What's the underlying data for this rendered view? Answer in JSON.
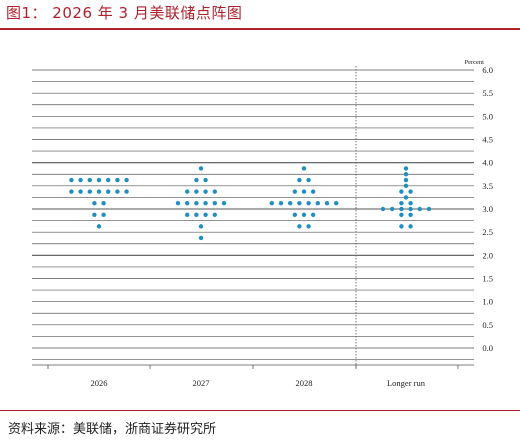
{
  "figure": {
    "title": "图1： 2026 年 3 月美联储点阵图",
    "source": "资料来源：美联储，浙商证券研究所"
  },
  "colors": {
    "dot": "#1f8fc2",
    "accent": "#b0202e",
    "grid": "#555555"
  },
  "chart_data": {
    "type": "scatter",
    "title": "",
    "xlabel": "",
    "ylabel": "Percent",
    "ylim": [
      -0.5,
      6.0
    ],
    "yticks": [
      "0.0",
      "0.5",
      "1.0",
      "1.5",
      "2.0",
      "2.5",
      "3.0",
      "3.5",
      "4.0",
      "4.5",
      "5.0",
      "5.5",
      "6.0"
    ],
    "categories": [
      "2026",
      "2027",
      "2028",
      "Longer run"
    ],
    "grid": true,
    "points": [
      {
        "category": "2026",
        "y": 3.625,
        "count": 7
      },
      {
        "category": "2026",
        "y": 3.375,
        "count": 7
      },
      {
        "category": "2026",
        "y": 3.125,
        "count": 2
      },
      {
        "category": "2026",
        "y": 2.875,
        "count": 2
      },
      {
        "category": "2026",
        "y": 2.625,
        "count": 1
      },
      {
        "category": "2027",
        "y": 3.875,
        "count": 1
      },
      {
        "category": "2027",
        "y": 3.625,
        "count": 2
      },
      {
        "category": "2027",
        "y": 3.375,
        "count": 4
      },
      {
        "category": "2027",
        "y": 3.125,
        "count": 6
      },
      {
        "category": "2027",
        "y": 2.875,
        "count": 4
      },
      {
        "category": "2027",
        "y": 2.625,
        "count": 1
      },
      {
        "category": "2027",
        "y": 2.375,
        "count": 1
      },
      {
        "category": "2028",
        "y": 3.875,
        "count": 1
      },
      {
        "category": "2028",
        "y": 3.625,
        "count": 2
      },
      {
        "category": "2028",
        "y": 3.375,
        "count": 3
      },
      {
        "category": "2028",
        "y": 3.125,
        "count": 8
      },
      {
        "category": "2028",
        "y": 2.875,
        "count": 3
      },
      {
        "category": "2028",
        "y": 2.625,
        "count": 2
      },
      {
        "category": "Longer run",
        "y": 3.875,
        "count": 1
      },
      {
        "category": "Longer run",
        "y": 3.75,
        "count": 1
      },
      {
        "category": "Longer run",
        "y": 3.625,
        "count": 1
      },
      {
        "category": "Longer run",
        "y": 3.5,
        "count": 1
      },
      {
        "category": "Longer run",
        "y": 3.375,
        "count": 2
      },
      {
        "category": "Longer run",
        "y": 3.25,
        "count": 1
      },
      {
        "category": "Longer run",
        "y": 3.125,
        "count": 2
      },
      {
        "category": "Longer run",
        "y": 3.0,
        "count": 6
      },
      {
        "category": "Longer run",
        "y": 2.875,
        "count": 2
      },
      {
        "category": "Longer run",
        "y": 2.625,
        "count": 2
      }
    ]
  }
}
